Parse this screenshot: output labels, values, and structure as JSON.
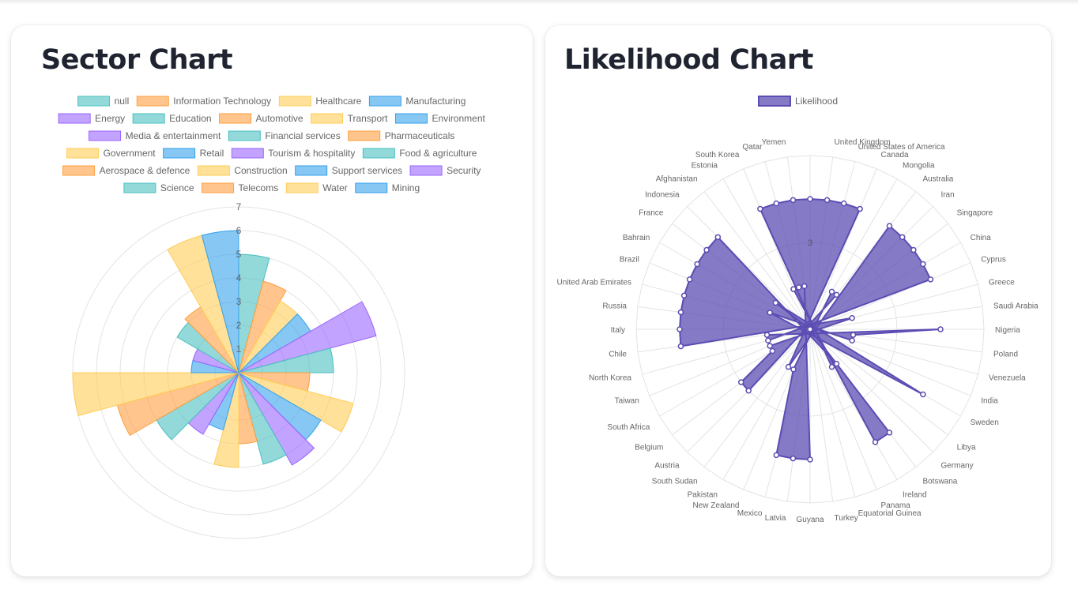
{
  "sector_chart": {
    "title": "Sector Chart",
    "chart_data": {
      "type": "polarArea",
      "title": "Sector Chart",
      "categories": [
        "null",
        "Information Technology",
        "Healthcare",
        "Manufacturing",
        "Energy",
        "Education",
        "Automotive",
        "Transport",
        "Environment",
        "Media & entertainment",
        "Financial services",
        "Pharmaceuticals",
        "Government",
        "Retail",
        "Tourism & hospitality",
        "Food & agriculture",
        "Aerospace & defence",
        "Construction",
        "Support services",
        "Security",
        "Science",
        "Telecoms",
        "Water",
        "Mining"
      ],
      "values": [
        5,
        4,
        3.5,
        3.5,
        6,
        4,
        3,
        5,
        4,
        4.5,
        4,
        3,
        4,
        2.5,
        3,
        4,
        5.3,
        7,
        2,
        2,
        3,
        3.2,
        6,
        6
      ],
      "r_ticks": [
        1,
        2,
        3,
        4,
        5,
        6,
        7
      ],
      "rlim": [
        0,
        7
      ],
      "palette": [
        "#4bc0c0",
        "#ff9f40",
        "#ffcd56",
        "#36a2eb",
        "#9966ff"
      ],
      "fill_alpha": 0.6,
      "grid": true,
      "legend_position": "top"
    }
  },
  "likelihood_chart": {
    "title": "Likelihood Chart",
    "chart_data": {
      "type": "radar",
      "title": "Likelihood Chart",
      "categories": [
        "",
        "United Kingdom",
        "United States of America",
        "Canada",
        "Mongolia",
        "Australia",
        "Iran",
        "Singapore",
        "China",
        "Cyprus",
        "Greece",
        "Saudi Arabia",
        "Nigeria",
        "Poland",
        "Venezuela",
        "India",
        "Sweden",
        "Libya",
        "Germany",
        "Botswana",
        "Ireland",
        "Panama",
        "Equatorial Guinea",
        "Turkey",
        "Guyana",
        "Latvia",
        "Mexico",
        "New Zealand",
        "Pakistan",
        "South Sudan",
        "Austria",
        "Belgium",
        "South Africa",
        "Taiwan",
        "North Korea",
        "Chile",
        "Italy",
        "Russia",
        "United Arab Emirates",
        "Brazil",
        "Bahrain",
        "France",
        "Indonesia",
        "Afghanistan",
        "Estonia",
        "South Korea",
        "Qatar",
        "Yemen"
      ],
      "series": [
        {
          "name": "Likelihood",
          "values": [
            4,
            4,
            4,
            4,
            0,
            4,
            4,
            4,
            4,
            4,
            0,
            0,
            4,
            2,
            2,
            0,
            4,
            0,
            1,
            4,
            4,
            0,
            0,
            0,
            4,
            4,
            4,
            2,
            0,
            0,
            3,
            3,
            2,
            2,
            0,
            4,
            4,
            4,
            4,
            4,
            4,
            4,
            4,
            0,
            0,
            4,
            4,
            4
          ]
        }
      ],
      "r_ticks": [
        3
      ],
      "rlim": [
        1,
        5
      ],
      "color": "#5b4db3",
      "fill": "rgba(91,77,179,0.75)",
      "grid": true,
      "legend_position": "top"
    }
  }
}
